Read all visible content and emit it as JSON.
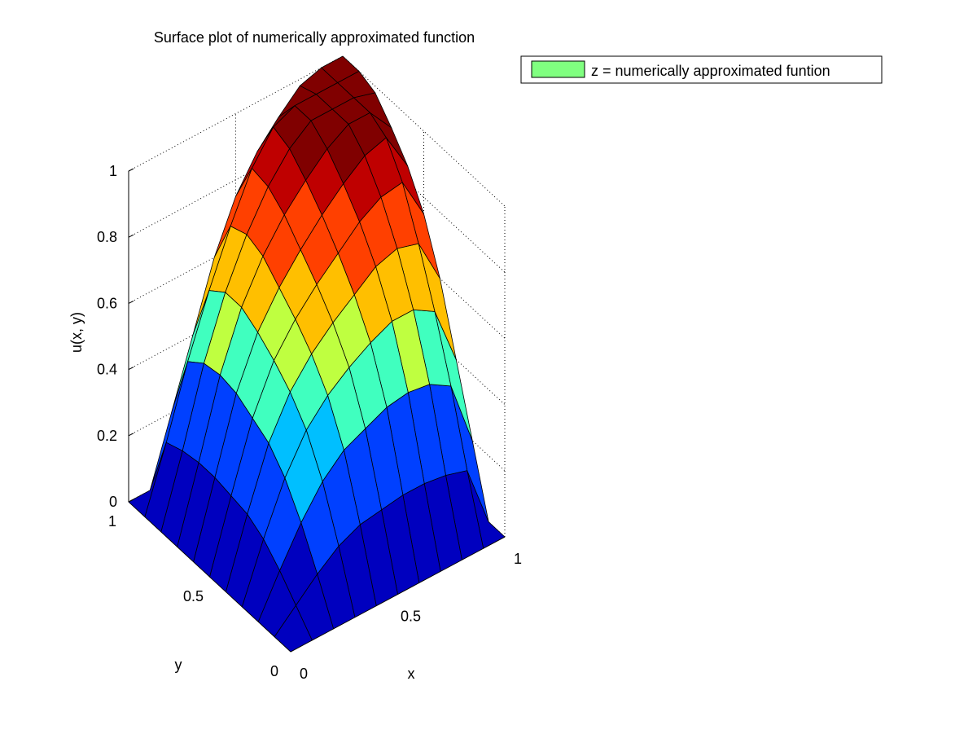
{
  "chart_data": {
    "type": "surface",
    "title": "Surface plot of numerically approximated function",
    "xlabel": "x",
    "ylabel": "y",
    "zlabel": "u(x, y)",
    "xlim": [
      0,
      1
    ],
    "ylim": [
      0,
      1
    ],
    "zlim": [
      0,
      1
    ],
    "x_ticks": [
      "0",
      "0.5",
      "1"
    ],
    "y_ticks": [
      "0",
      "0.5",
      "1"
    ],
    "z_ticks": [
      "0",
      "0.2",
      "0.4",
      "0.6",
      "0.8",
      "1"
    ],
    "colormap": "jet",
    "grid": true,
    "legend_position": "top-right",
    "series": [
      {
        "name": "z = numerically approximated funtion",
        "legend_color": "#80ff80"
      }
    ],
    "grid_x": [
      0,
      0.1,
      0.2,
      0.3,
      0.4,
      0.5,
      0.6,
      0.7,
      0.8,
      0.9,
      1.0
    ],
    "grid_y": [
      0,
      0.1,
      0.2,
      0.3,
      0.4,
      0.5,
      0.6,
      0.7,
      0.8,
      0.9,
      1.0
    ],
    "z_values": [
      [
        0,
        0,
        0,
        0,
        0,
        0,
        0,
        0,
        0,
        0,
        0
      ],
      [
        0,
        0.06,
        0.12,
        0.17,
        0.2,
        0.21,
        0.22,
        0.22,
        0.21,
        0.19,
        0
      ],
      [
        0,
        0.12,
        0.23,
        0.32,
        0.38,
        0.41,
        0.44,
        0.45,
        0.44,
        0.4,
        0.2
      ],
      [
        0,
        0.17,
        0.32,
        0.43,
        0.5,
        0.55,
        0.59,
        0.62,
        0.62,
        0.58,
        0.4
      ],
      [
        0,
        0.2,
        0.38,
        0.5,
        0.58,
        0.64,
        0.69,
        0.74,
        0.76,
        0.74,
        0.6
      ],
      [
        0,
        0.21,
        0.41,
        0.55,
        0.64,
        0.71,
        0.77,
        0.83,
        0.87,
        0.88,
        0.75
      ],
      [
        0,
        0.22,
        0.44,
        0.59,
        0.69,
        0.77,
        0.84,
        0.9,
        0.95,
        0.97,
        0.85
      ],
      [
        0,
        0.22,
        0.45,
        0.62,
        0.74,
        0.83,
        0.9,
        0.96,
        1.0,
        1.0,
        0.92
      ],
      [
        0,
        0.21,
        0.44,
        0.62,
        0.76,
        0.87,
        0.95,
        1.0,
        1.0,
        1.0,
        0.98
      ],
      [
        0,
        0.19,
        0.4,
        0.58,
        0.74,
        0.88,
        0.97,
        1.0,
        1.0,
        1.0,
        1.0
      ],
      [
        0,
        0,
        0.2,
        0.4,
        0.6,
        0.75,
        0.85,
        0.92,
        0.98,
        1.0,
        1.0
      ]
    ]
  }
}
